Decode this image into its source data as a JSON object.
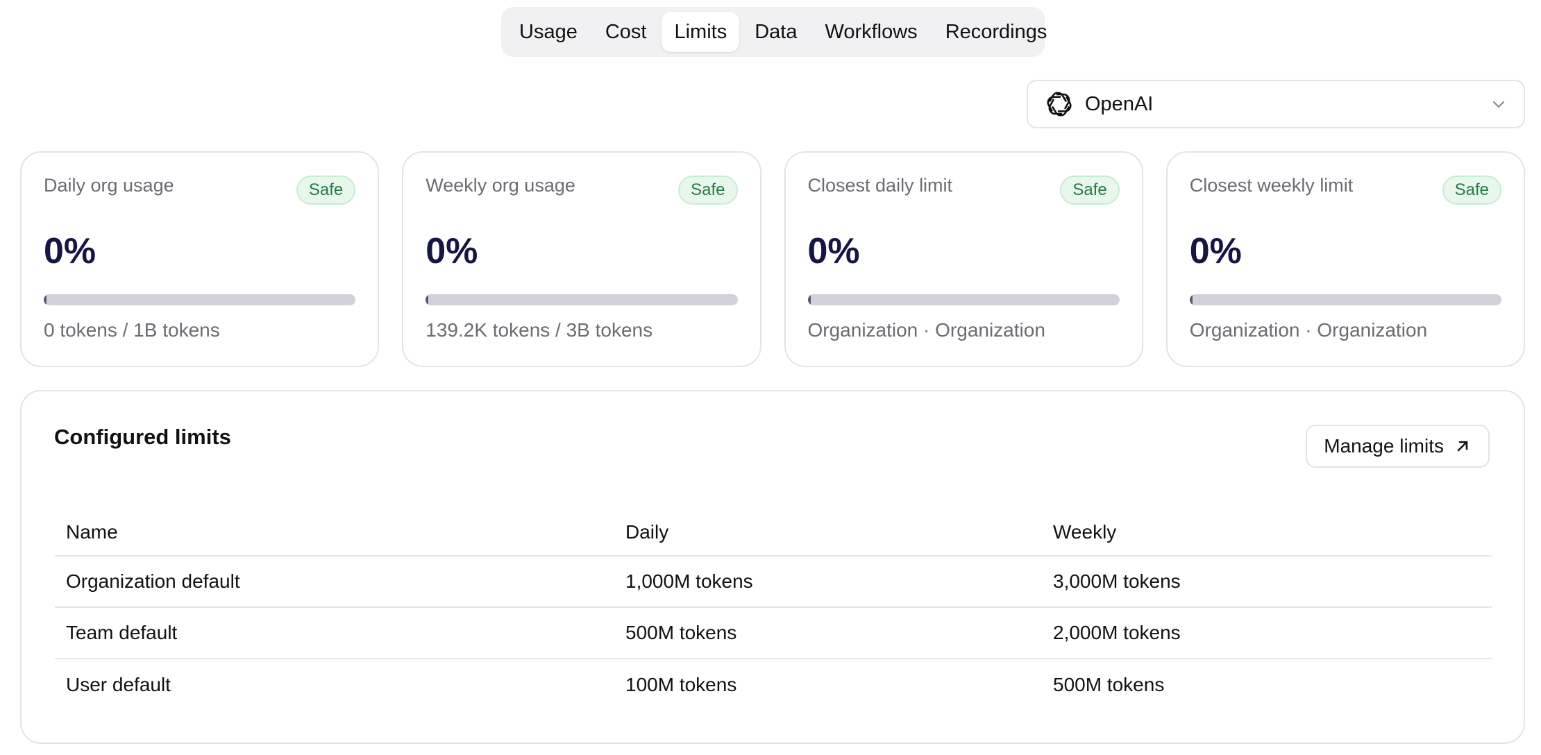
{
  "tabs": [
    {
      "label": "Usage"
    },
    {
      "label": "Cost"
    },
    {
      "label": "Limits"
    },
    {
      "label": "Data"
    },
    {
      "label": "Workflows"
    },
    {
      "label": "Recordings"
    }
  ],
  "active_tab": "Limits",
  "provider": {
    "label": "OpenAI",
    "icon": "openai-logo-icon",
    "chevron_icon": "chevron-down-icon"
  },
  "cards": [
    {
      "title": "Daily org usage",
      "badge": "Safe",
      "percent": "0%",
      "progress": 0,
      "caption": "0 tokens / 1B tokens"
    },
    {
      "title": "Weekly org usage",
      "badge": "Safe",
      "percent": "0%",
      "progress": 0,
      "caption": "139.2K tokens / 3B tokens"
    },
    {
      "title": "Closest daily limit",
      "badge": "Safe",
      "percent": "0%",
      "progress": 0,
      "caption": "Organization · Organization"
    },
    {
      "title": "Closest weekly limit",
      "badge": "Safe",
      "percent": "0%",
      "progress": 0,
      "caption": "Organization · Organization"
    }
  ],
  "limits": {
    "heading": "Configured limits",
    "manage_label": "Manage limits",
    "manage_icon": "arrow-up-right-icon",
    "columns": [
      "Name",
      "Daily",
      "Weekly"
    ],
    "rows": [
      [
        "Organization default",
        "1,000M tokens",
        "3,000M tokens"
      ],
      [
        "Team default",
        "500M tokens",
        "2,000M tokens"
      ],
      [
        "User default",
        "100M tokens",
        "500M tokens"
      ]
    ]
  },
  "colors": {
    "safe_badge_bg": "#e8f7ec",
    "safe_badge_text": "#2a7a45",
    "percent_text": "#161646",
    "progress_track": "#d1d1db"
  }
}
